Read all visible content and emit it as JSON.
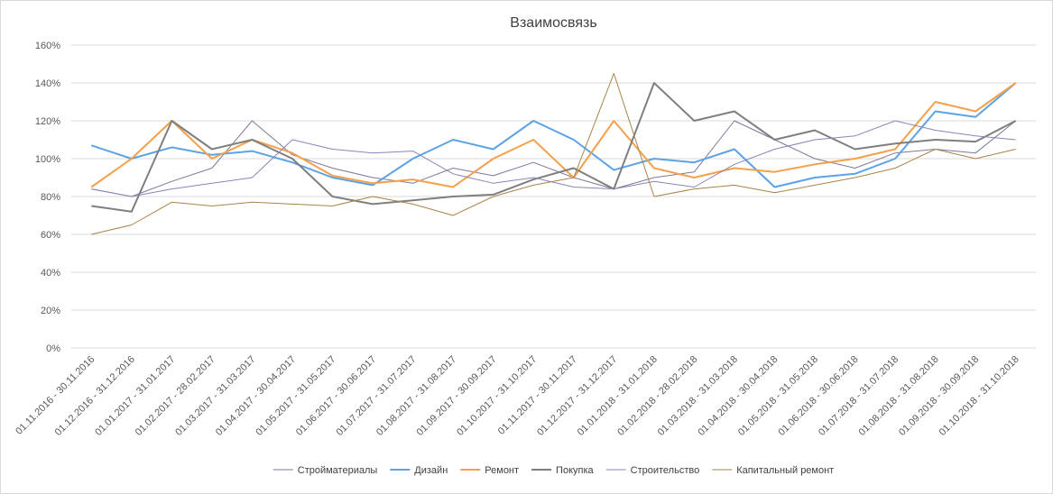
{
  "chart_data": {
    "type": "line",
    "title": "Взаимосвязь",
    "xlabel": "",
    "ylabel": "",
    "ylim": [
      0,
      160
    ],
    "yticks": [
      "0%",
      "20%",
      "40%",
      "60%",
      "80%",
      "100%",
      "120%",
      "140%",
      "160%"
    ],
    "grid": true,
    "legend_position": "bottom",
    "categories": [
      "01.11.2016 - 30.11.2016",
      "01.12.2016 - 31.12.2016",
      "01.01.2017 - 31.01.2017",
      "01.02.2017 - 28.02.2017",
      "01.03.2017 - 31.03.2017",
      "01.04.2017 - 30.04.2017",
      "01.05.2017 - 31.05.2017",
      "01.06.2017 - 30.06.2017",
      "01.07.2017 - 31.07.2017",
      "01.08.2017 - 31.08.2017",
      "01.09.2017 - 30.09.2017",
      "01.10.2017 - 31.10.2017",
      "01.11.2017 - 30.11.2017",
      "01.12.2017 - 31.12.2017",
      "01.01.2018 - 31.01.2018",
      "01.02.2018 - 28.02.2018",
      "01.03.2018 - 31.03.2018",
      "01.04.2018 - 30.04.2018",
      "01.05.2018 - 31.05.2018",
      "01.06.2018 - 30.06.2018",
      "01.07.2018 - 31.07.2018",
      "01.08.2018 - 31.08.2018",
      "01.09.2018 - 30.09.2018",
      "01.10.2018 - 31.10.2018"
    ],
    "series": [
      {
        "name": "Стройматериалы",
        "color": "#7f7799",
        "width": 1,
        "values": [
          84,
          80,
          88,
          95,
          120,
          102,
          95,
          90,
          87,
          95,
          91,
          98,
          90,
          84,
          90,
          93,
          120,
          110,
          100,
          95,
          103,
          105,
          103,
          120
        ]
      },
      {
        "name": "Дизайн",
        "color": "#5ba3e6",
        "width": 2,
        "values": [
          107,
          100,
          106,
          102,
          104,
          98,
          90,
          86,
          100,
          110,
          105,
          120,
          110,
          94,
          100,
          98,
          105,
          85,
          90,
          92,
          100,
          125,
          122,
          140
        ]
      },
      {
        "name": "Ремонт",
        "color": "#f5a04a",
        "width": 2,
        "values": [
          85,
          100,
          120,
          100,
          110,
          103,
          91,
          87,
          89,
          85,
          100,
          110,
          90,
          120,
          95,
          90,
          95,
          93,
          97,
          100,
          105,
          130,
          125,
          140
        ]
      },
      {
        "name": "Покупка",
        "color": "#7f7f7f",
        "width": 2,
        "values": [
          75,
          72,
          120,
          105,
          110,
          100,
          80,
          76,
          78,
          80,
          81,
          89,
          95,
          84,
          140,
          120,
          125,
          110,
          115,
          105,
          108,
          110,
          109,
          120
        ]
      },
      {
        "name": "Строительство",
        "color": "#8a84b8",
        "width": 1,
        "values": [
          84,
          80,
          84,
          87,
          90,
          110,
          105,
          103,
          104,
          92,
          87,
          90,
          85,
          84,
          88,
          85,
          97,
          105,
          110,
          112,
          120,
          115,
          112,
          110
        ]
      },
      {
        "name": "Капитальный ремонт",
        "color": "#a8834a",
        "width": 1,
        "values": [
          60,
          65,
          77,
          75,
          77,
          76,
          75,
          80,
          76,
          70,
          80,
          86,
          90,
          145,
          80,
          84,
          86,
          82,
          86,
          90,
          95,
          105,
          100,
          105
        ]
      }
    ]
  }
}
